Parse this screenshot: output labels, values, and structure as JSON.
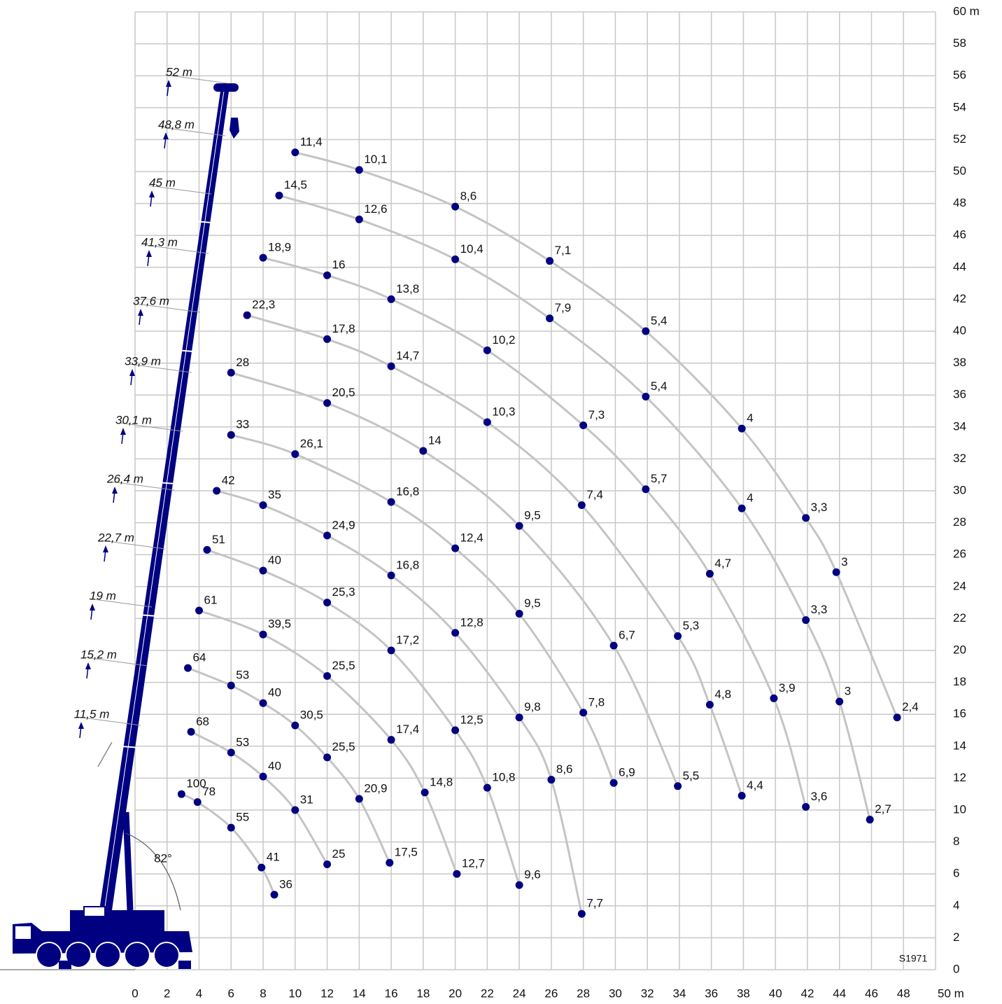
{
  "chart_data": {
    "type": "load-chart",
    "xlim": [
      0,
      50
    ],
    "ylim": [
      0,
      60
    ],
    "xticks": [
      0,
      2,
      4,
      6,
      8,
      10,
      12,
      14,
      16,
      18,
      20,
      22,
      24,
      26,
      28,
      30,
      32,
      34,
      36,
      38,
      40,
      42,
      44,
      46,
      48,
      {
        "value": 50,
        "label": "50 m"
      }
    ],
    "yticks": [
      0,
      2,
      4,
      6,
      8,
      10,
      12,
      14,
      16,
      18,
      20,
      22,
      24,
      26,
      28,
      30,
      32,
      34,
      36,
      38,
      40,
      42,
      44,
      46,
      48,
      50,
      52,
      54,
      56,
      58,
      {
        "value": 60,
        "label": "60 m"
      }
    ],
    "grid": true,
    "color": "#000080",
    "curve_color": "#c4c4c4",
    "angle_label": "82°",
    "drawing_code": "S1971",
    "series": [
      {
        "name": "52 m",
        "x": [
          10.0,
          14.0,
          20.0,
          25.9,
          31.9,
          37.9,
          41.9,
          43.8,
          47.6
        ],
        "y": [
          51.2,
          50.1,
          47.8,
          44.4,
          40.0,
          33.9,
          28.3,
          24.9,
          15.8
        ],
        "values": [
          11.4,
          10.1,
          8.6,
          7.1,
          5.4,
          4,
          3.3,
          3,
          2.4
        ],
        "value_labels": [
          "11,4",
          "10,1",
          "8,6",
          "7,1",
          "5,4",
          "4",
          "3,3",
          "3",
          "2,4"
        ]
      },
      {
        "name": "48,8 m",
        "x": [
          9.0,
          14.0,
          20.0,
          25.9,
          31.9,
          37.9,
          41.9,
          44.0,
          45.9
        ],
        "y": [
          48.5,
          47.0,
          44.5,
          40.8,
          35.9,
          28.9,
          21.9,
          16.8,
          9.4
        ],
        "values": [
          14.5,
          12.6,
          10.4,
          7.9,
          5.4,
          4,
          3.3,
          3,
          2.7
        ],
        "value_labels": [
          "14,5",
          "12,6",
          "10,4",
          "7,9",
          "5,4",
          "4",
          "3,3",
          "3",
          "2,7"
        ]
      },
      {
        "name": "45 m",
        "x": [
          8.0,
          12.0,
          16.0,
          22.0,
          28.0,
          31.9,
          35.9,
          39.9,
          41.9
        ],
        "y": [
          44.6,
          43.5,
          42.0,
          38.8,
          34.1,
          30.1,
          24.8,
          17.0,
          10.2
        ],
        "values": [
          18.9,
          16,
          13.8,
          10.2,
          7.3,
          5.7,
          4.7,
          3.9,
          3.6
        ],
        "value_labels": [
          "18,9",
          "16",
          "13,8",
          "10,2",
          "7,3",
          "5,7",
          "4,7",
          "3,9",
          "3,6"
        ]
      },
      {
        "name": "41,3 m",
        "x": [
          7.0,
          12.0,
          16.0,
          22.0,
          27.9,
          33.9,
          35.9,
          37.9
        ],
        "y": [
          41.0,
          39.5,
          37.8,
          34.3,
          29.1,
          20.9,
          16.6,
          10.9
        ],
        "values": [
          22.3,
          17.8,
          14.7,
          10.3,
          7.4,
          5.3,
          4.8,
          4.4
        ],
        "value_labels": [
          "22,3",
          "17,8",
          "14,7",
          "10,3",
          "7,4",
          "5,3",
          "4,8",
          "4,4"
        ]
      },
      {
        "name": "37,6 m",
        "x": [
          6.0,
          12.0,
          18.0,
          24.0,
          29.9,
          33.9
        ],
        "y": [
          37.4,
          35.5,
          32.5,
          27.8,
          20.3,
          11.5
        ],
        "values": [
          28,
          20.5,
          14,
          9.5,
          6.7,
          5.5
        ],
        "value_labels": [
          "28",
          "20,5",
          "14",
          "9,5",
          "6,7",
          "5,5"
        ]
      },
      {
        "name": "33,9 m",
        "x": [
          6.0,
          10.0,
          16.0,
          20.0,
          24.0,
          28.0,
          29.9
        ],
        "y": [
          33.5,
          32.3,
          29.3,
          26.4,
          22.3,
          16.1,
          11.7
        ],
        "values": [
          33,
          26.1,
          16.8,
          12.4,
          9.5,
          7.8,
          6.9
        ],
        "value_labels": [
          "33",
          "26,1",
          "16,8",
          "12,4",
          "9,5",
          "7,8",
          "6,9"
        ]
      },
      {
        "name": "30,1 m",
        "x": [
          5.1,
          8.0,
          12.0,
          16.0,
          20.0,
          24.0,
          26.0,
          27.9
        ],
        "y": [
          30.0,
          29.1,
          27.2,
          24.7,
          21.1,
          15.8,
          11.9,
          3.5
        ],
        "values": [
          42,
          35,
          24.9,
          16.8,
          12.8,
          9.8,
          8.6,
          7.7
        ],
        "value_labels": [
          "42",
          "35",
          "24,9",
          "16,8",
          "12,8",
          "9,8",
          "8,6",
          "7,7"
        ]
      },
      {
        "name": "26,4 m",
        "x": [
          4.5,
          8.0,
          12.0,
          16.0,
          20.0,
          22.0,
          24.0
        ],
        "y": [
          26.3,
          25.0,
          23.0,
          20.0,
          15.0,
          11.4,
          5.3
        ],
        "values": [
          51,
          40,
          25.3,
          17.2,
          12.5,
          10.8,
          9.6
        ],
        "value_labels": [
          "51",
          "40",
          "25,3",
          "17,2",
          "12,5",
          "10,8",
          "9,6"
        ]
      },
      {
        "name": "22,7 m",
        "x": [
          4.0,
          8.0,
          12.0,
          16.0,
          18.1,
          20.1
        ],
        "y": [
          22.5,
          21.0,
          18.4,
          14.4,
          11.1,
          6.0
        ],
        "values": [
          61,
          39.5,
          25.5,
          17.4,
          14.8,
          12.7
        ],
        "value_labels": [
          "61",
          "39,5",
          "25,5",
          "17,4",
          "14,8",
          "12,7"
        ]
      },
      {
        "name": "19 m",
        "x": [
          3.3,
          6.0,
          8.0,
          10.0,
          12.0,
          14.0,
          15.9
        ],
        "y": [
          18.9,
          17.8,
          16.7,
          15.3,
          13.3,
          10.7,
          6.7
        ],
        "values": [
          64,
          53,
          40,
          30.5,
          25.5,
          20.9,
          17.5
        ],
        "value_labels": [
          "64",
          "53",
          "40",
          "30,5",
          "25,5",
          "20,9",
          "17,5"
        ]
      },
      {
        "name": "15,2 m",
        "x": [
          3.5,
          6.0,
          8.0,
          10.0,
          12.0
        ],
        "y": [
          14.9,
          13.6,
          12.1,
          10.0,
          6.6
        ],
        "values": [
          68,
          53,
          40,
          31,
          25
        ],
        "value_labels": [
          "68",
          "53",
          "40",
          "31",
          "25"
        ]
      },
      {
        "name": "11,5 m",
        "x": [
          2.9,
          3.9,
          6.0,
          7.9,
          8.7
        ],
        "y": [
          11.0,
          10.5,
          8.9,
          6.4,
          4.7
        ],
        "values": [
          100,
          78,
          55,
          41,
          36
        ],
        "value_labels": [
          "100",
          "78",
          "55",
          "41",
          "36"
        ]
      }
    ]
  }
}
